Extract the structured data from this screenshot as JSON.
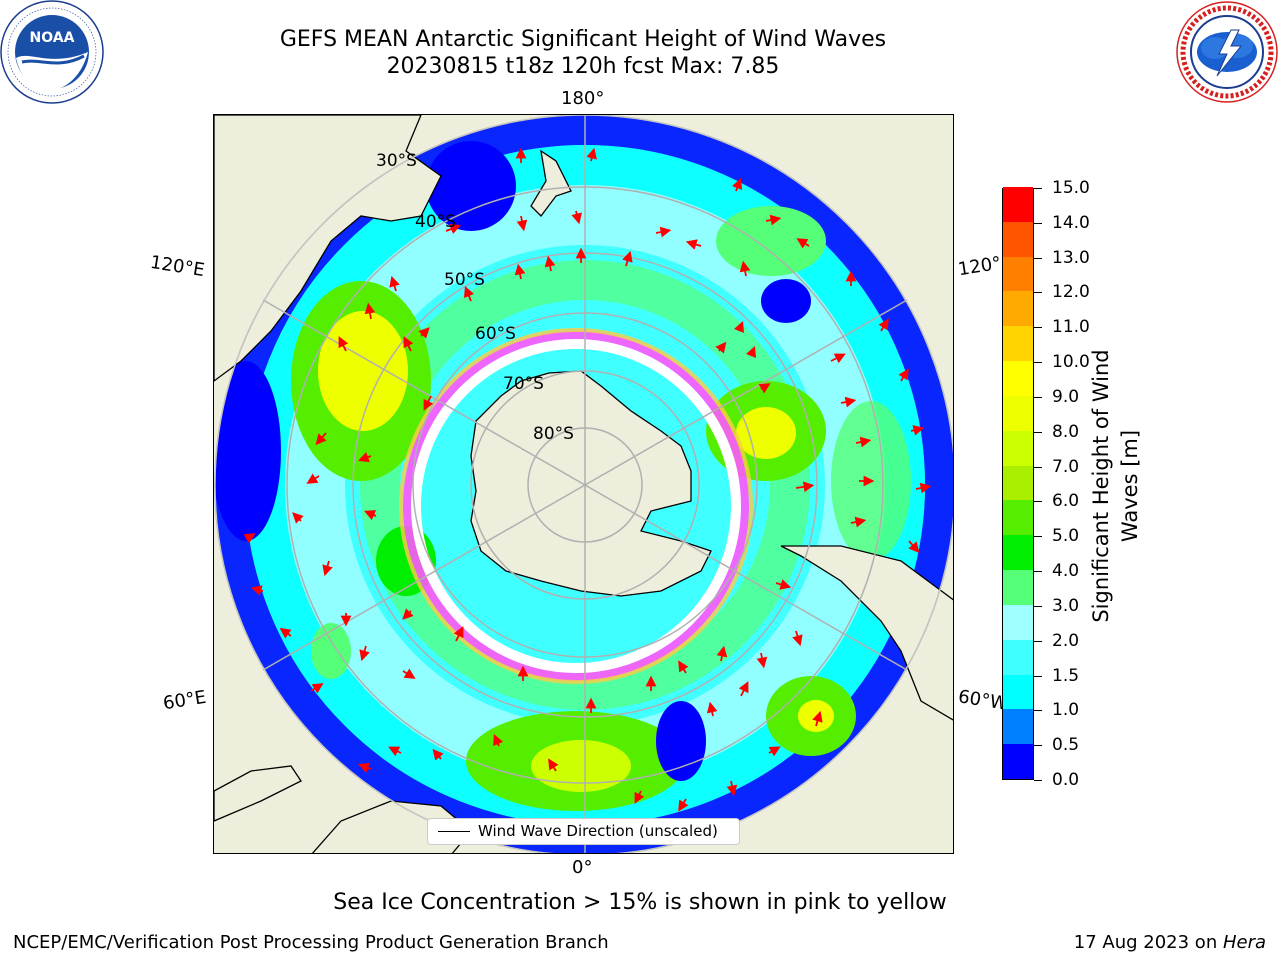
{
  "header": {
    "title_line1": "GEFS MEAN Antarctic Significant Height of Wind Waves",
    "title_line2": "20230815 t18z 120h fcst   Max: 7.85"
  },
  "logos": {
    "noaa_text": "NOAA",
    "noaa_ring_text": "NATIONAL OCEANIC AND ATMOSPHERIC ADMINISTRATION · U.S. DEPARTMENT OF COMMERCE",
    "nws_ring_text": "NATIONAL WEATHER SERVICE"
  },
  "map": {
    "projection": "south-polar-stereographic",
    "longitude_labels": {
      "top": "180°",
      "bottom": "0°",
      "left_upper": "120°E",
      "left_lower": "60°E",
      "right_upper": "120°",
      "right_lower": "60°W"
    },
    "latitude_labels": [
      "30°S",
      "40°S",
      "50°S",
      "60°S",
      "70°S",
      "80°S"
    ],
    "legend_label": "Wind Wave Direction (unscaled)",
    "colors": {
      "land": "#eeeedd",
      "coastline": "#000000",
      "grid": "#b0b0b0",
      "arrow": "#ff0000",
      "sea_ice_low": "#ff55ff",
      "sea_ice_high": "#ffcc44"
    }
  },
  "colorbar": {
    "title": "Significant Height of Wind Waves [m]",
    "title_line1": "Significant Height of Wind",
    "title_line2": "Waves [m]",
    "tick_labels": [
      "0.0",
      "0.5",
      "1.0",
      "1.5",
      "2.0",
      "3.0",
      "4.0",
      "5.0",
      "6.0",
      "7.0",
      "8.0",
      "9.0",
      "10.0",
      "11.0",
      "12.0",
      "13.0",
      "14.0",
      "15.0"
    ],
    "colors": [
      "#0000ff",
      "#0080ff",
      "#00ffff",
      "#40ffff",
      "#a0ffff",
      "#55ff77",
      "#00ee00",
      "#55ee00",
      "#aaee00",
      "#ccff00",
      "#eeff00",
      "#ffff00",
      "#ffd400",
      "#ffaa00",
      "#ff8000",
      "#ff5500",
      "#ff0000"
    ]
  },
  "footer": {
    "caption": "Sea Ice Concentration > 15% is shown in pink to yellow",
    "left": "NCEP/EMC/Verification Post Processing Product Generation Branch",
    "right_prefix": "17 Aug 2023 on ",
    "right_machine": "Hera"
  }
}
